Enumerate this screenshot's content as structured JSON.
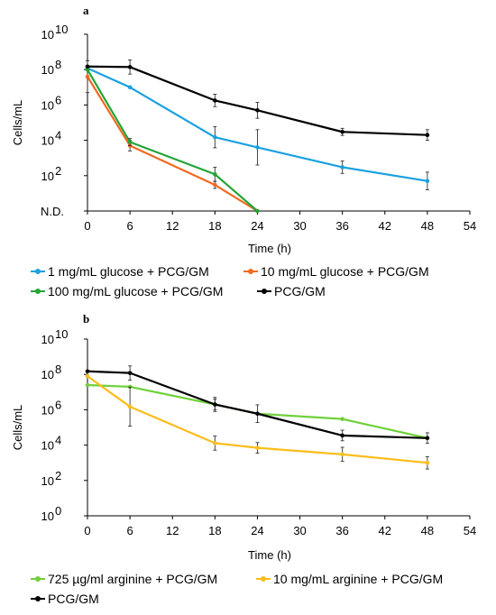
{
  "chart_data": [
    {
      "type": "line",
      "panel_label": "a",
      "xlabel": "Time (h)",
      "ylabel": "Cells/mL",
      "x_ticks": [
        "0",
        "6",
        "12",
        "18",
        "24",
        "30",
        "36",
        "42",
        "48",
        "54"
      ],
      "xlim": [
        0,
        54
      ],
      "y_ticks": [
        {
          "base": "N.D.",
          "exp": ""
        },
        {
          "base": "10",
          "exp": "2"
        },
        {
          "base": "10",
          "exp": "4"
        },
        {
          "base": "10",
          "exp": "6"
        },
        {
          "base": "10",
          "exp": "8"
        },
        {
          "base": "10",
          "exp": "10"
        }
      ],
      "y_scale": "log10, bottom tick = N.D. (not detected)",
      "series": [
        {
          "name": "1 mg/mL glucose + PCG/GM",
          "color": "#1aa1e0",
          "points": [
            [
              0,
              120000000.0,
              0
            ],
            [
              6,
              10000000.0,
              0
            ],
            [
              18,
              15000.0,
              0.6
            ],
            [
              24,
              4000.0,
              1.0
            ],
            [
              36,
              300,
              0.35
            ],
            [
              48,
              50,
              0.5
            ]
          ]
        },
        {
          "name": "10 mg/mL glucose + PCG/GM",
          "color": "#f06a21",
          "points": [
            [
              0,
              40000000.0,
              0.9
            ],
            [
              6,
              5000.0,
              0.3
            ],
            [
              18,
              30,
              0.2
            ],
            [
              24,
              "N.D.",
              0
            ]
          ]
        },
        {
          "name": "100 mg/mL glucose + PCG/GM",
          "color": "#22a535",
          "points": [
            [
              0,
              100000000.0,
              0
            ],
            [
              6,
              8000.0,
              0.2
            ],
            [
              18,
              120,
              0.4
            ],
            [
              24,
              "N.D.",
              0
            ]
          ]
        },
        {
          "name": "PCG/GM",
          "color": "#000000",
          "points": [
            [
              0,
              150000000.0,
              0
            ],
            [
              6,
              140000000.0,
              0.4
            ],
            [
              18,
              1800000.0,
              0.35
            ],
            [
              24,
              500000.0,
              0.45
            ],
            [
              36,
              30000.0,
              0.2
            ],
            [
              48,
              20000.0,
              0.3
            ]
          ]
        }
      ],
      "grid": false,
      "legend_position": "bottom"
    },
    {
      "type": "line",
      "panel_label": "b",
      "xlabel": "Time (h)",
      "ylabel": "Cells/mL",
      "x_ticks": [
        "0",
        "6",
        "12",
        "18",
        "24",
        "30",
        "36",
        "42",
        "48",
        "54"
      ],
      "xlim": [
        0,
        54
      ],
      "y_ticks": [
        {
          "base": "10",
          "exp": "0"
        },
        {
          "base": "10",
          "exp": "2"
        },
        {
          "base": "10",
          "exp": "4"
        },
        {
          "base": "10",
          "exp": "6"
        },
        {
          "base": "10",
          "exp": "8"
        },
        {
          "base": "10",
          "exp": "10"
        }
      ],
      "y_scale": "log10",
      "series": [
        {
          "name": "725 µg/ml arginine + PCG/GM",
          "color": "#6fd13a",
          "points": [
            [
              0,
              25000000.0,
              0
            ],
            [
              6,
              20000000.0,
              0
            ],
            [
              18,
              2000000.0,
              0.3
            ],
            [
              24,
              600000.0,
              0
            ],
            [
              36,
              300000.0,
              0
            ],
            [
              48,
              25000.0,
              0
            ]
          ]
        },
        {
          "name": "10 mg/mL arginine + PCG/GM",
          "color": "#fbbd1a",
          "points": [
            [
              0,
              80000000.0,
              0
            ],
            [
              6,
              1500000.0,
              1.1
            ],
            [
              18,
              13000.0,
              0.4
            ],
            [
              24,
              7000.0,
              0.3
            ],
            [
              36,
              3000.0,
              0.4
            ],
            [
              48,
              1000.0,
              0.35
            ]
          ]
        },
        {
          "name": "PCG/GM",
          "color": "#000000",
          "points": [
            [
              0,
              150000000.0,
              0
            ],
            [
              6,
              120000000.0,
              0.4
            ],
            [
              18,
              2000000.0,
              0.4
            ],
            [
              24,
              600000.0,
              0.5
            ],
            [
              36,
              35000.0,
              0.3
            ],
            [
              48,
              25000.0,
              0.3
            ]
          ]
        }
      ],
      "grid": false,
      "legend_position": "bottom"
    }
  ]
}
